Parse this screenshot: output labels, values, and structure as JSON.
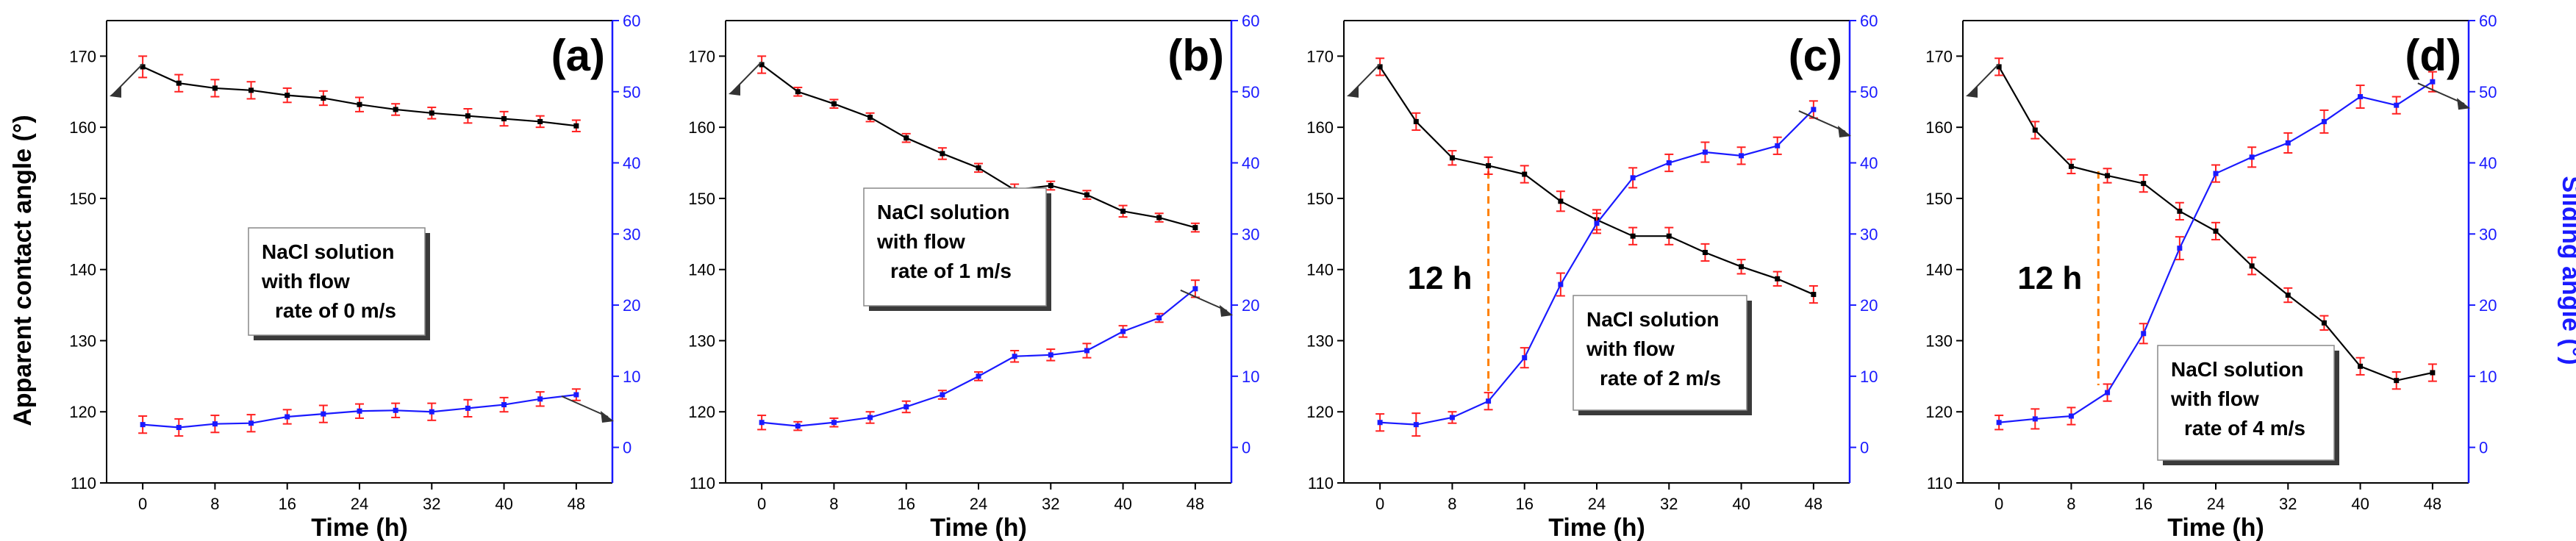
{
  "figure": {
    "ylabel_left": "Apparent contact angle (°)",
    "ylabel_right": "Sliding angle (°)"
  },
  "colors": {
    "left": "#000000",
    "right": "#1a1aff",
    "error": "#ff2020",
    "dashed": "#ff8000",
    "frame_right": "#1a1aff"
  },
  "chart_data": [
    {
      "type": "line",
      "panel_label": "(a)",
      "xlabel": "Time (h)",
      "x_ticks": [
        0,
        8,
        16,
        24,
        32,
        40,
        48
      ],
      "left_ticks": [
        110,
        120,
        130,
        140,
        150,
        160,
        170
      ],
      "right_ticks": [
        0,
        10,
        20,
        30,
        40,
        50,
        60
      ],
      "xlim": [
        -4,
        52
      ],
      "ylim_left": [
        110,
        175
      ],
      "ylim_right": [
        -5,
        60
      ],
      "annotation": [
        "NaCl solution",
        "with flow",
        "rate of 0 m/s"
      ],
      "marker_label": "",
      "series": [
        {
          "name": "Apparent contact angle",
          "axis": "left",
          "x": [
            0,
            4,
            8,
            12,
            16,
            20,
            24,
            28,
            32,
            36,
            40,
            44,
            48
          ],
          "values": [
            168.5,
            166.2,
            165.5,
            165.2,
            164.5,
            164.1,
            163.2,
            162.5,
            162.0,
            161.6,
            161.2,
            160.8,
            160.2
          ],
          "errors": [
            1.5,
            1.2,
            1.2,
            1.2,
            1.0,
            1.0,
            1.0,
            0.8,
            0.8,
            1.0,
            1.0,
            0.8,
            0.8
          ]
        },
        {
          "name": "Sliding angle",
          "axis": "right",
          "x": [
            0,
            4,
            8,
            12,
            16,
            20,
            24,
            28,
            32,
            36,
            40,
            44,
            48
          ],
          "values": [
            3.2,
            2.8,
            3.3,
            3.4,
            4.3,
            4.7,
            5.1,
            5.2,
            5.0,
            5.5,
            6.0,
            6.8,
            7.4
          ],
          "errors": [
            1.2,
            1.2,
            1.2,
            1.2,
            1.0,
            1.2,
            1.0,
            1.0,
            1.2,
            1.2,
            1.0,
            1.0,
            0.8
          ]
        }
      ]
    },
    {
      "type": "line",
      "panel_label": "(b)",
      "xlabel": "Time (h)",
      "x_ticks": [
        0,
        8,
        16,
        24,
        32,
        40,
        48
      ],
      "left_ticks": [
        110,
        120,
        130,
        140,
        150,
        160,
        170
      ],
      "right_ticks": [
        0,
        10,
        20,
        30,
        40,
        50,
        60
      ],
      "xlim": [
        -4,
        52
      ],
      "ylim_left": [
        110,
        175
      ],
      "ylim_right": [
        -5,
        60
      ],
      "annotation": [
        "NaCl solution",
        "with flow",
        "rate of 1 m/s"
      ],
      "marker_label": "",
      "series": [
        {
          "name": "Apparent contact angle",
          "axis": "left",
          "x": [
            0,
            4,
            8,
            12,
            16,
            20,
            24,
            28,
            32,
            36,
            40,
            44,
            48
          ],
          "values": [
            168.8,
            165.0,
            163.3,
            161.4,
            158.5,
            156.3,
            154.3,
            151.2,
            151.8,
            150.5,
            148.2,
            147.3,
            145.9
          ],
          "errors": [
            1.2,
            0.6,
            0.6,
            0.6,
            0.6,
            0.8,
            0.6,
            0.8,
            0.6,
            0.6,
            0.8,
            0.6,
            0.6
          ]
        },
        {
          "name": "Sliding angle",
          "axis": "right",
          "x": [
            0,
            4,
            8,
            12,
            16,
            20,
            24,
            28,
            32,
            36,
            40,
            44,
            48
          ],
          "values": [
            3.5,
            3.0,
            3.5,
            4.2,
            5.7,
            7.4,
            10.0,
            12.8,
            13.0,
            13.6,
            16.3,
            18.2,
            22.3
          ],
          "errors": [
            1.0,
            0.6,
            0.6,
            0.8,
            0.8,
            0.6,
            0.6,
            0.8,
            0.8,
            1.0,
            0.8,
            0.6,
            1.2
          ]
        }
      ]
    },
    {
      "type": "line",
      "panel_label": "(c)",
      "xlabel": "Time (h)",
      "x_ticks": [
        0,
        8,
        16,
        24,
        32,
        40,
        48
      ],
      "left_ticks": [
        110,
        120,
        130,
        140,
        150,
        160,
        170
      ],
      "right_ticks": [
        0,
        10,
        20,
        30,
        40,
        50,
        60
      ],
      "xlim": [
        -4,
        52
      ],
      "ylim_left": [
        110,
        175
      ],
      "ylim_right": [
        -5,
        60
      ],
      "annotation": [
        "NaCl solution",
        "with flow",
        "rate of 2 m/s"
      ],
      "marker_label": "12 h",
      "marker_x": 12,
      "series": [
        {
          "name": "Apparent contact angle",
          "axis": "left",
          "x": [
            0,
            4,
            8,
            12,
            16,
            20,
            24,
            28,
            32,
            36,
            40,
            44,
            48
          ],
          "values": [
            168.5,
            160.8,
            155.7,
            154.6,
            153.4,
            149.6,
            147.0,
            144.7,
            144.7,
            142.4,
            140.4,
            138.7,
            136.5
          ],
          "errors": [
            1.2,
            1.2,
            1.0,
            1.2,
            1.2,
            1.4,
            1.4,
            1.2,
            1.2,
            1.2,
            1.0,
            1.0,
            1.2
          ]
        },
        {
          "name": "Sliding angle",
          "axis": "right",
          "x": [
            0,
            4,
            8,
            12,
            16,
            20,
            24,
            28,
            32,
            36,
            40,
            44,
            48
          ],
          "values": [
            3.5,
            3.2,
            4.2,
            6.5,
            12.6,
            22.9,
            31.5,
            37.9,
            40.0,
            41.5,
            41.0,
            42.4,
            47.5
          ],
          "errors": [
            1.2,
            1.6,
            0.8,
            1.2,
            1.4,
            1.6,
            1.4,
            1.4,
            1.2,
            1.4,
            1.2,
            1.2,
            1.2
          ]
        }
      ]
    },
    {
      "type": "line",
      "panel_label": "(d)",
      "xlabel": "Time (h)",
      "x_ticks": [
        0,
        8,
        16,
        24,
        32,
        40,
        48
      ],
      "left_ticks": [
        110,
        120,
        130,
        140,
        150,
        160,
        170
      ],
      "right_ticks": [
        0,
        10,
        20,
        30,
        40,
        50,
        60
      ],
      "xlim": [
        -4,
        52
      ],
      "ylim_left": [
        110,
        175
      ],
      "ylim_right": [
        -5,
        60
      ],
      "annotation": [
        "NaCl solution",
        "with flow",
        "rate of 4 m/s"
      ],
      "marker_label": "12 h",
      "marker_x": 11,
      "series": [
        {
          "name": "Apparent contact angle",
          "axis": "left",
          "x": [
            0,
            4,
            8,
            12,
            16,
            20,
            24,
            28,
            32,
            36,
            40,
            44,
            48
          ],
          "values": [
            168.5,
            159.6,
            154.5,
            153.2,
            152.1,
            148.2,
            145.4,
            140.5,
            136.4,
            132.5,
            126.4,
            124.4,
            125.5
          ],
          "errors": [
            1.2,
            1.2,
            1.0,
            1.0,
            1.2,
            1.2,
            1.2,
            1.2,
            1.0,
            1.0,
            1.2,
            1.2,
            1.2
          ]
        },
        {
          "name": "Sliding angle",
          "axis": "right",
          "x": [
            0,
            4,
            8,
            12,
            16,
            20,
            24,
            28,
            32,
            36,
            40,
            44,
            48
          ],
          "values": [
            3.5,
            4.0,
            4.4,
            7.7,
            16.0,
            28.0,
            38.5,
            40.8,
            42.8,
            45.8,
            49.3,
            48.1,
            51.4
          ],
          "errors": [
            1.0,
            1.4,
            1.2,
            1.2,
            1.4,
            1.6,
            1.2,
            1.4,
            1.4,
            1.6,
            1.6,
            1.2,
            1.4
          ]
        }
      ]
    }
  ]
}
